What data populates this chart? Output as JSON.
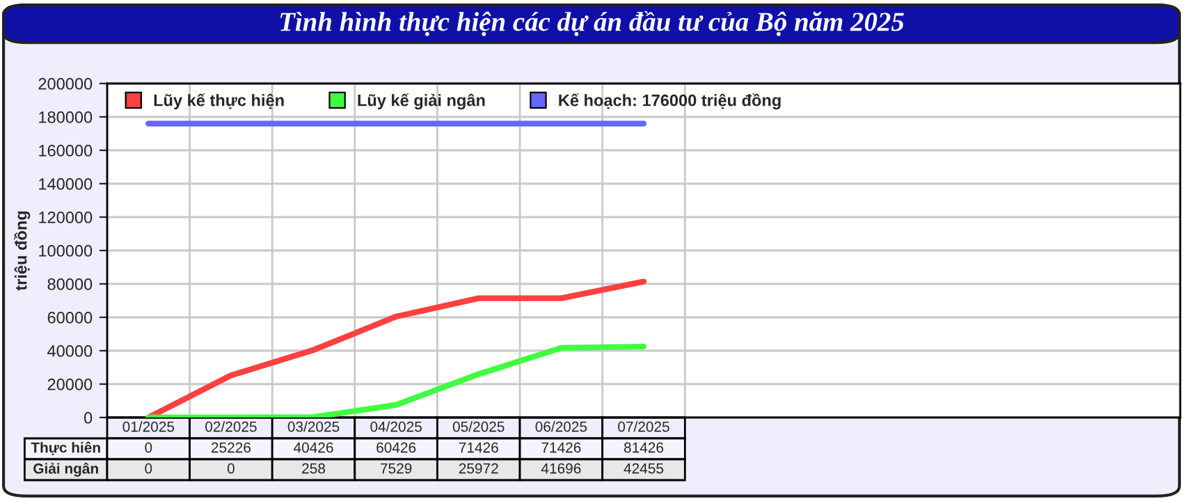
{
  "chart_data": {
    "type": "line",
    "title": "Tình hình thực hiện các dự án đầu tư của Bộ năm 2025",
    "ylabel": "triệu đồng",
    "categories": [
      "01/2025",
      "02/2025",
      "03/2025",
      "04/2025",
      "05/2025",
      "06/2025",
      "07/2025"
    ],
    "series": [
      {
        "name": "Lũy kế thực hiện",
        "color": "#ff4040",
        "values": [
          0,
          25226,
          40426,
          60426,
          71426,
          71426,
          81426
        ],
        "value_labels": [
          "0",
          "25226",
          "40426",
          "60426",
          "71426",
          "71426",
          "81426"
        ]
      },
      {
        "name": "Lũy kế giải ngân",
        "color": "#40ff40",
        "values": [
          0,
          0,
          258,
          7529,
          25972,
          41696,
          42455
        ],
        "value_labels": [
          "0",
          "0",
          "258",
          "7529",
          "25972",
          "41696",
          "42455"
        ]
      },
      {
        "name": "Kế hoạch: 176000 triệu đồng",
        "color": "#6666ff",
        "values": [
          176000,
          176000,
          176000,
          176000,
          176000,
          176000,
          176000
        ]
      }
    ],
    "annotations": [
      "Thực hiên",
      "Giải ngân"
    ],
    "ylim": [
      0,
      200000
    ],
    "yticks": [
      0,
      20000,
      40000,
      60000,
      80000,
      100000,
      120000,
      140000,
      160000,
      180000,
      200000
    ],
    "grid": true,
    "legend": "top",
    "marker": "none",
    "line_style": "solid"
  }
}
